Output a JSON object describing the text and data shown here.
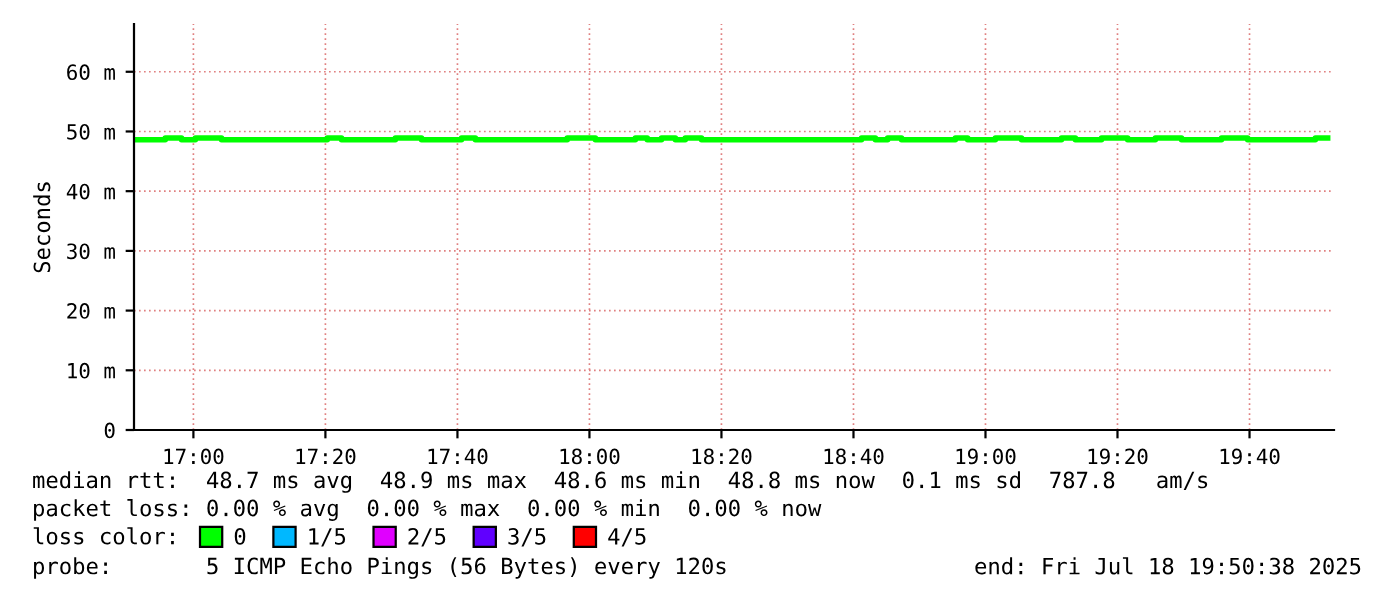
{
  "chart_data": {
    "type": "step",
    "ylabel": "Seconds",
    "xlim": [
      16.85,
      19.88
    ],
    "xticks": [
      {
        "value": 17,
        "label": "17:00"
      },
      {
        "value": 17.3333,
        "label": "17:20"
      },
      {
        "value": 17.6667,
        "label": "17:40"
      },
      {
        "value": 18,
        "label": "18:00"
      },
      {
        "value": 18.3333,
        "label": "18:20"
      },
      {
        "value": 18.6667,
        "label": "18:40"
      },
      {
        "value": 19,
        "label": "19:00"
      },
      {
        "value": 19.3333,
        "label": "19:20"
      },
      {
        "value": 19.6667,
        "label": "19:40"
      }
    ],
    "ylim": [
      0,
      68
    ],
    "yticks": [
      0,
      {
        "value": 10,
        "label": "10 m"
      },
      {
        "value": 20,
        "label": "20 m"
      },
      {
        "value": 30,
        "label": "30 m"
      },
      {
        "value": 40,
        "label": "40 m"
      },
      {
        "value": 50,
        "label": "50 m"
      },
      {
        "value": 60,
        "label": "60 m"
      }
    ],
    "grid": true,
    "legend": "bottom",
    "legend_title": "loss color:",
    "series": [
      {
        "name": "0",
        "color": "#00ff00",
        "x": [
          16.85,
          16.929,
          16.97,
          17.005,
          17.071,
          17.338,
          17.374,
          17.51,
          17.576,
          17.677,
          17.712,
          17.944,
          18.015,
          18.116,
          18.146,
          18.182,
          18.217,
          18.242,
          18.283,
          18.687,
          18.722,
          18.753,
          18.788,
          18.924,
          18.955,
          19.025,
          19.091,
          19.192,
          19.227,
          19.293,
          19.359,
          19.429,
          19.495,
          19.596,
          19.662,
          19.833,
          19.864
        ],
        "values": [
          48.6,
          48.9,
          48.6,
          48.9,
          48.6,
          48.9,
          48.6,
          48.9,
          48.6,
          48.9,
          48.6,
          48.9,
          48.6,
          48.9,
          48.6,
          48.9,
          48.6,
          48.9,
          48.6,
          48.9,
          48.6,
          48.9,
          48.6,
          48.9,
          48.6,
          48.9,
          48.6,
          48.9,
          48.6,
          48.9,
          48.6,
          48.9,
          48.6,
          48.9,
          48.6,
          48.9,
          48.9
        ]
      },
      {
        "name": "1/5",
        "color": "#00b8ff"
      },
      {
        "name": "2/5",
        "color": "#e000ff"
      },
      {
        "name": "3/5",
        "color": "#6000ff"
      },
      {
        "name": "4/5",
        "color": "#ff0000"
      }
    ],
    "annotations": [
      "median rtt:  48.7 ms avg  48.9 ms max  48.6 ms min  48.8 ms now  0.1 ms sd  787.8   am/s",
      "packet loss: 0.00 % avg  0.00 % max  0.00 % min  0.00 % now",
      "probe:       5 ICMP Echo Pings (56 Bytes) every 120s",
      "end: Fri Jul 18 19:50:38 2025"
    ]
  }
}
